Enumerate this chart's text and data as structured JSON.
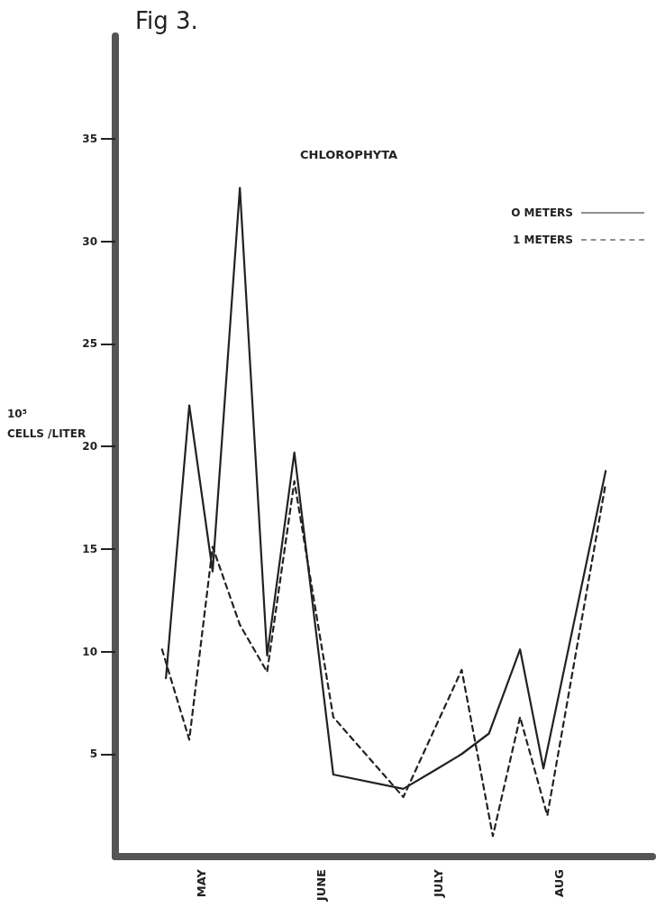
{
  "chart_data": {
    "type": "line",
    "title": "CHLOROPHYTA",
    "ylabel": "10⁵ CELLS /LITER",
    "annotations": [
      "Fig 3."
    ],
    "xlim": [
      "--04-23",
      "--09-08"
    ],
    "xticks": [
      {
        "value": "--05-15",
        "label": "MAY"
      },
      {
        "value": "--06-15",
        "label": "JUNE"
      },
      {
        "value": "--07-15",
        "label": "JULY"
      },
      {
        "value": "--08-15",
        "label": "AUG"
      }
    ],
    "ylim": [
      0,
      40
    ],
    "yticks": [
      5,
      10,
      15,
      20,
      25,
      30,
      35
    ],
    "grid": false,
    "legend": "top right",
    "marker": "none",
    "series": [
      {
        "name": "O METERS",
        "color": "#222222",
        "line_style": "solid",
        "x": [
          "--05-06",
          "--05-12",
          "--05-18",
          "--05-25",
          "--06-01",
          "--06-08",
          "--06-18",
          "--07-06",
          "--07-14",
          "--07-21",
          "--07-28",
          "--08-05",
          "--08-11",
          "--08-27"
        ],
        "values": [
          8.7,
          22.0,
          13.9,
          32.6,
          9.8,
          19.7,
          4.0,
          3.3,
          4.2,
          5.0,
          6.0,
          10.1,
          4.3,
          18.8
        ]
      },
      {
        "name": "1 METERS",
        "color": "#222222",
        "line_style": "dashed",
        "x": [
          "--05-05",
          "--05-12",
          "--05-18",
          "--05-25",
          "--06-01",
          "--06-08",
          "--06-18",
          "--07-06",
          "--07-21",
          "--07-29",
          "--08-05",
          "--08-12",
          "--08-27"
        ],
        "values": [
          10.1,
          5.7,
          15.1,
          11.3,
          9.0,
          18.3,
          6.8,
          2.9,
          9.1,
          1.0,
          6.8,
          2.0,
          18.2
        ]
      }
    ]
  }
}
